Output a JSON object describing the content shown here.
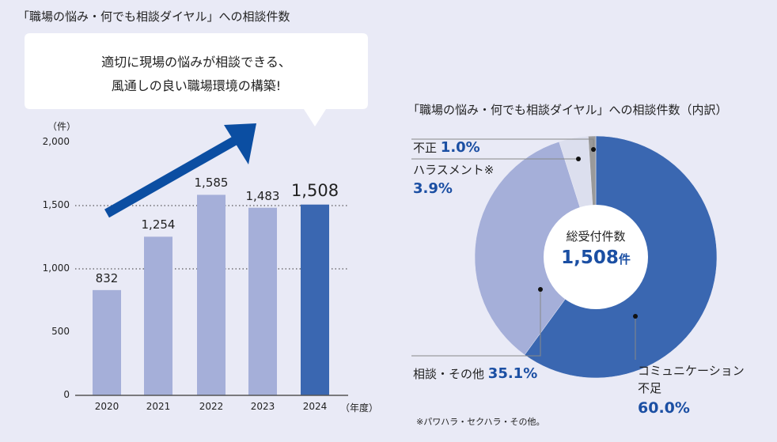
{
  "colors": {
    "background": "#e9eaf6",
    "bar": "#a5afd9",
    "bar_highlight": "#3a67b1",
    "arrow": "#0b4ea2",
    "accent_text": "#1b4fa3",
    "harassment": "#dcdfee",
    "fraud": "#9a9a9a"
  },
  "chart_data": [
    {
      "type": "bar",
      "title": "「職場の悩み・何でも相談ダイヤル」への相談件数",
      "ylabel": "（件）",
      "xlabel": "（年度）",
      "categories": [
        "2020",
        "2021",
        "2022",
        "2023",
        "2024"
      ],
      "values": [
        832,
        1254,
        1585,
        1483,
        1508
      ],
      "value_labels": [
        "832",
        "1,254",
        "1,585",
        "1,483",
        "1,508"
      ],
      "highlight": "2024",
      "ylim": [
        0,
        2000
      ],
      "yticks": [
        0,
        500,
        1000,
        1500,
        2000
      ],
      "ytick_labels": [
        "0",
        "500",
        "1,000",
        "1,500",
        "2,000"
      ],
      "gridlines": "dotted at 1,000 and 1,500",
      "callout": {
        "line1": "適切に現場の悩みが相談できる、",
        "line2": "風通しの良い職場環境の構築!"
      }
    },
    {
      "type": "pie",
      "donut": true,
      "title": "「職場の悩み・何でも相談ダイヤル」への相談件数（内訳）",
      "center_label": "総受付件数",
      "center_value": "1,508",
      "center_unit": "件",
      "slices": [
        {
          "name_line1": "コミュニケーション",
          "name_line2": "不足",
          "value": 60.0,
          "label": "60.0%",
          "color": "#3a67b1"
        },
        {
          "name_line1": "相談・その他",
          "value": 35.1,
          "label": "35.1%",
          "color": "#a5afd9"
        },
        {
          "name_line1": "ハラスメント※",
          "value": 3.9,
          "label": "3.9%",
          "color": "#dcdfee"
        },
        {
          "name_line1": "不正",
          "value": 1.0,
          "label": "1.0%",
          "color": "#9a9a9a"
        }
      ],
      "footnote": "※パワハラ・セクハラ・その他。"
    }
  ]
}
